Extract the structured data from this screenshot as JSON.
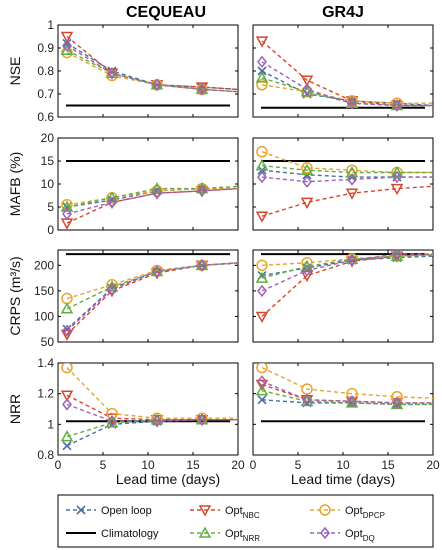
{
  "chart_data": [
    {
      "type": "line",
      "column": "CEQUEAU",
      "ylabel": "NSE",
      "ylim": [
        0.6,
        1.0
      ],
      "yticks": [
        0.6,
        0.7,
        0.8,
        0.9,
        1
      ],
      "ytick_labels": [
        "0.6",
        "0.7",
        "0.8",
        "0.9",
        "1"
      ],
      "climatology": 0.65,
      "series": [
        {
          "key": "open",
          "x": [
            1,
            6,
            11,
            16,
            20
          ],
          "values": [
            0.92,
            0.8,
            0.74,
            0.73,
            0.72
          ]
        },
        {
          "key": "nbc",
          "x": [
            1,
            6,
            11,
            16,
            20
          ],
          "values": [
            0.95,
            0.79,
            0.74,
            0.73,
            0.72
          ]
        },
        {
          "key": "dpcp",
          "x": [
            1,
            6,
            11,
            16,
            20
          ],
          "values": [
            0.88,
            0.78,
            0.74,
            0.72,
            0.71
          ]
        },
        {
          "key": "nrr",
          "x": [
            1,
            6,
            11,
            16,
            20
          ],
          "values": [
            0.89,
            0.79,
            0.74,
            0.72,
            0.71
          ]
        },
        {
          "key": "dq",
          "x": [
            1,
            6,
            11,
            16,
            20
          ],
          "values": [
            0.91,
            0.79,
            0.74,
            0.72,
            0.71
          ]
        }
      ]
    },
    {
      "type": "line",
      "column": "GR4J",
      "ylabel": "",
      "ylim": [
        0.6,
        1.0
      ],
      "yticks": [
        0.6,
        0.7,
        0.8,
        0.9,
        1
      ],
      "ytick_labels": [
        "",
        "",
        "",
        "",
        ""
      ],
      "climatology": 0.64,
      "series": [
        {
          "key": "open",
          "x": [
            1,
            6,
            11,
            16,
            20
          ],
          "values": [
            0.8,
            0.7,
            0.67,
            0.66,
            0.65
          ]
        },
        {
          "key": "nbc",
          "x": [
            1,
            6,
            11,
            16,
            20
          ],
          "values": [
            0.93,
            0.76,
            0.67,
            0.65,
            0.65
          ]
        },
        {
          "key": "dpcp",
          "x": [
            1,
            6,
            11,
            16,
            20
          ],
          "values": [
            0.74,
            0.71,
            0.67,
            0.66,
            0.66
          ]
        },
        {
          "key": "nrr",
          "x": [
            1,
            6,
            11,
            16,
            20
          ],
          "values": [
            0.77,
            0.71,
            0.66,
            0.65,
            0.65
          ]
        },
        {
          "key": "dq",
          "x": [
            1,
            6,
            11,
            16,
            20
          ],
          "values": [
            0.84,
            0.72,
            0.66,
            0.65,
            0.65
          ]
        }
      ]
    },
    {
      "type": "line",
      "column": "CEQUEAU",
      "ylabel": "MAFB (%)",
      "ylim": [
        0,
        20
      ],
      "yticks": [
        0,
        5,
        10,
        15,
        20
      ],
      "ytick_labels": [
        "0",
        "5",
        "10",
        "15",
        "20"
      ],
      "climatology": 15,
      "series": [
        {
          "key": "open",
          "x": [
            1,
            6,
            11,
            16,
            20
          ],
          "values": [
            5.0,
            6.5,
            8.5,
            9.0,
            9.0
          ]
        },
        {
          "key": "nbc",
          "x": [
            1,
            6,
            11,
            16,
            20
          ],
          "values": [
            1.5,
            6.0,
            8.0,
            8.5,
            9.0
          ]
        },
        {
          "key": "dpcp",
          "x": [
            1,
            6,
            11,
            16,
            20
          ],
          "values": [
            5.5,
            7.0,
            8.5,
            9.0,
            9.0
          ]
        },
        {
          "key": "nrr",
          "x": [
            1,
            6,
            11,
            16,
            20
          ],
          "values": [
            5.0,
            7.0,
            9.0,
            9.0,
            9.5
          ]
        },
        {
          "key": "dq",
          "x": [
            1,
            6,
            11,
            16,
            20
          ],
          "values": [
            3.5,
            6.0,
            8.0,
            8.5,
            9.0
          ]
        }
      ]
    },
    {
      "type": "line",
      "column": "GR4J",
      "ylabel": "",
      "ylim": [
        0,
        20
      ],
      "yticks": [
        0,
        5,
        10,
        15,
        20
      ],
      "ytick_labels": [
        "",
        "",
        "",
        "",
        ""
      ],
      "climatology": 15,
      "series": [
        {
          "key": "open",
          "x": [
            1,
            6,
            11,
            16,
            20
          ],
          "values": [
            13.0,
            12.0,
            11.5,
            11.5,
            11.5
          ]
        },
        {
          "key": "nbc",
          "x": [
            1,
            6,
            11,
            16,
            20
          ],
          "values": [
            3.0,
            6.0,
            8.0,
            9.0,
            9.5
          ]
        },
        {
          "key": "dpcp",
          "x": [
            1,
            6,
            11,
            16,
            20
          ],
          "values": [
            17.0,
            13.5,
            13.0,
            12.5,
            12.5
          ]
        },
        {
          "key": "nrr",
          "x": [
            1,
            6,
            11,
            16,
            20
          ],
          "values": [
            14.0,
            13.0,
            12.5,
            12.5,
            12.5
          ]
        },
        {
          "key": "dq",
          "x": [
            1,
            6,
            11,
            16,
            20
          ],
          "values": [
            11.5,
            10.5,
            11.0,
            11.5,
            11.5
          ]
        }
      ]
    },
    {
      "type": "line",
      "column": "CEQUEAU",
      "ylabel": "CRPS (m³/s)",
      "ylim": [
        50,
        230
      ],
      "yticks": [
        50,
        100,
        150,
        200
      ],
      "ytick_labels": [
        "50",
        "100",
        "150",
        "200"
      ],
      "climatology": 222,
      "series": [
        {
          "key": "open",
          "x": [
            1,
            6,
            11,
            16,
            20
          ],
          "values": [
            75,
            155,
            188,
            200,
            205
          ]
        },
        {
          "key": "nbc",
          "x": [
            1,
            6,
            11,
            16,
            20
          ],
          "values": [
            65,
            150,
            185,
            200,
            205
          ]
        },
        {
          "key": "dpcp",
          "x": [
            1,
            6,
            11,
            16,
            20
          ],
          "values": [
            135,
            162,
            190,
            200,
            205
          ]
        },
        {
          "key": "nrr",
          "x": [
            1,
            6,
            11,
            16,
            20
          ],
          "values": [
            115,
            158,
            188,
            200,
            204
          ]
        },
        {
          "key": "dq",
          "x": [
            1,
            6,
            11,
            16,
            20
          ],
          "values": [
            72,
            153,
            188,
            200,
            205
          ]
        }
      ]
    },
    {
      "type": "line",
      "column": "GR4J",
      "ylabel": "",
      "ylim": [
        50,
        230
      ],
      "yticks": [
        50,
        100,
        150,
        200
      ],
      "ytick_labels": [
        "",
        "",
        "",
        ""
      ],
      "climatology": 222,
      "series": [
        {
          "key": "open",
          "x": [
            1,
            6,
            11,
            16,
            20
          ],
          "values": [
            180,
            195,
            210,
            215,
            218
          ]
        },
        {
          "key": "nbc",
          "x": [
            1,
            6,
            11,
            16,
            20
          ],
          "values": [
            100,
            180,
            208,
            218,
            222
          ]
        },
        {
          "key": "dpcp",
          "x": [
            1,
            6,
            11,
            16,
            20
          ],
          "values": [
            200,
            205,
            213,
            218,
            220
          ]
        },
        {
          "key": "nrr",
          "x": [
            1,
            6,
            11,
            16,
            20
          ],
          "values": [
            175,
            198,
            212,
            218,
            220
          ]
        },
        {
          "key": "dq",
          "x": [
            1,
            6,
            11,
            16,
            20
          ],
          "values": [
            150,
            190,
            210,
            222,
            222
          ]
        }
      ]
    },
    {
      "type": "line",
      "column": "CEQUEAU",
      "ylabel": "NRR",
      "ylim": [
        0.8,
        1.4
      ],
      "yticks": [
        0.8,
        1.0,
        1.2,
        1.4
      ],
      "ytick_labels": [
        "0.8",
        "1",
        "1.2",
        "1.4"
      ],
      "climatology": 1.02,
      "series": [
        {
          "key": "open",
          "x": [
            1,
            6,
            11,
            16,
            20
          ],
          "values": [
            0.86,
            1.0,
            1.02,
            1.03,
            1.03
          ]
        },
        {
          "key": "nbc",
          "x": [
            1,
            6,
            11,
            16,
            20
          ],
          "values": [
            1.19,
            1.04,
            1.03,
            1.03,
            1.03
          ]
        },
        {
          "key": "dpcp",
          "x": [
            1,
            6,
            11,
            16,
            20
          ],
          "values": [
            1.37,
            1.07,
            1.04,
            1.04,
            1.04
          ]
        },
        {
          "key": "nrr",
          "x": [
            1,
            6,
            11,
            16,
            20
          ],
          "values": [
            0.92,
            1.01,
            1.03,
            1.03,
            1.03
          ]
        },
        {
          "key": "dq",
          "x": [
            1,
            6,
            11,
            16,
            20
          ],
          "values": [
            1.13,
            1.02,
            1.02,
            1.03,
            1.03
          ]
        }
      ]
    },
    {
      "type": "line",
      "column": "GR4J",
      "ylabel": "",
      "ylim": [
        0.8,
        1.4
      ],
      "yticks": [
        0.8,
        1.0,
        1.2,
        1.4
      ],
      "ytick_labels": [
        "",
        "",
        "",
        ""
      ],
      "climatology": 1.02,
      "series": [
        {
          "key": "open",
          "x": [
            1,
            6,
            11,
            16,
            20
          ],
          "values": [
            1.16,
            1.14,
            1.14,
            1.13,
            1.13
          ]
        },
        {
          "key": "nbc",
          "x": [
            1,
            6,
            11,
            16,
            20
          ],
          "values": [
            1.26,
            1.16,
            1.15,
            1.14,
            1.14
          ]
        },
        {
          "key": "dpcp",
          "x": [
            1,
            6,
            11,
            16,
            20
          ],
          "values": [
            1.37,
            1.23,
            1.2,
            1.18,
            1.17
          ]
        },
        {
          "key": "nrr",
          "x": [
            1,
            6,
            11,
            16,
            20
          ],
          "values": [
            1.22,
            1.15,
            1.14,
            1.13,
            1.13
          ]
        },
        {
          "key": "dq",
          "x": [
            1,
            6,
            11,
            16,
            20
          ],
          "values": [
            1.28,
            1.16,
            1.15,
            1.14,
            1.14
          ]
        }
      ]
    }
  ],
  "figure": {
    "column_titles": [
      "CEQUEAU",
      "GR4J"
    ],
    "xlabel": "Lead time (days)",
    "xlim": [
      0,
      20
    ],
    "xticks": [
      0,
      5,
      10,
      15,
      20
    ],
    "xtick_labels": [
      "0",
      "5",
      "10",
      "15",
      "20"
    ],
    "climatology_color": "#000000"
  },
  "legend": {
    "placement": "bottom",
    "entries": [
      {
        "key": "open",
        "label": "Open loop",
        "sub": "",
        "color": "#4a6fa5",
        "marker": "x"
      },
      {
        "key": "nbc",
        "label": "Opt",
        "sub": "NBC",
        "color": "#d9452b",
        "marker": "triangle-down"
      },
      {
        "key": "dpcp",
        "label": "Opt",
        "sub": "DPCP",
        "color": "#e8a32c",
        "marker": "circle"
      },
      {
        "key": "clim",
        "label": "Climatology",
        "sub": "",
        "color": "#000000",
        "marker": "line"
      },
      {
        "key": "nrr",
        "label": "Opt",
        "sub": "NRR",
        "color": "#5fae3f",
        "marker": "triangle-up"
      },
      {
        "key": "dq",
        "label": "Opt",
        "sub": "DQ",
        "color": "#9b63b8",
        "marker": "diamond"
      }
    ]
  }
}
